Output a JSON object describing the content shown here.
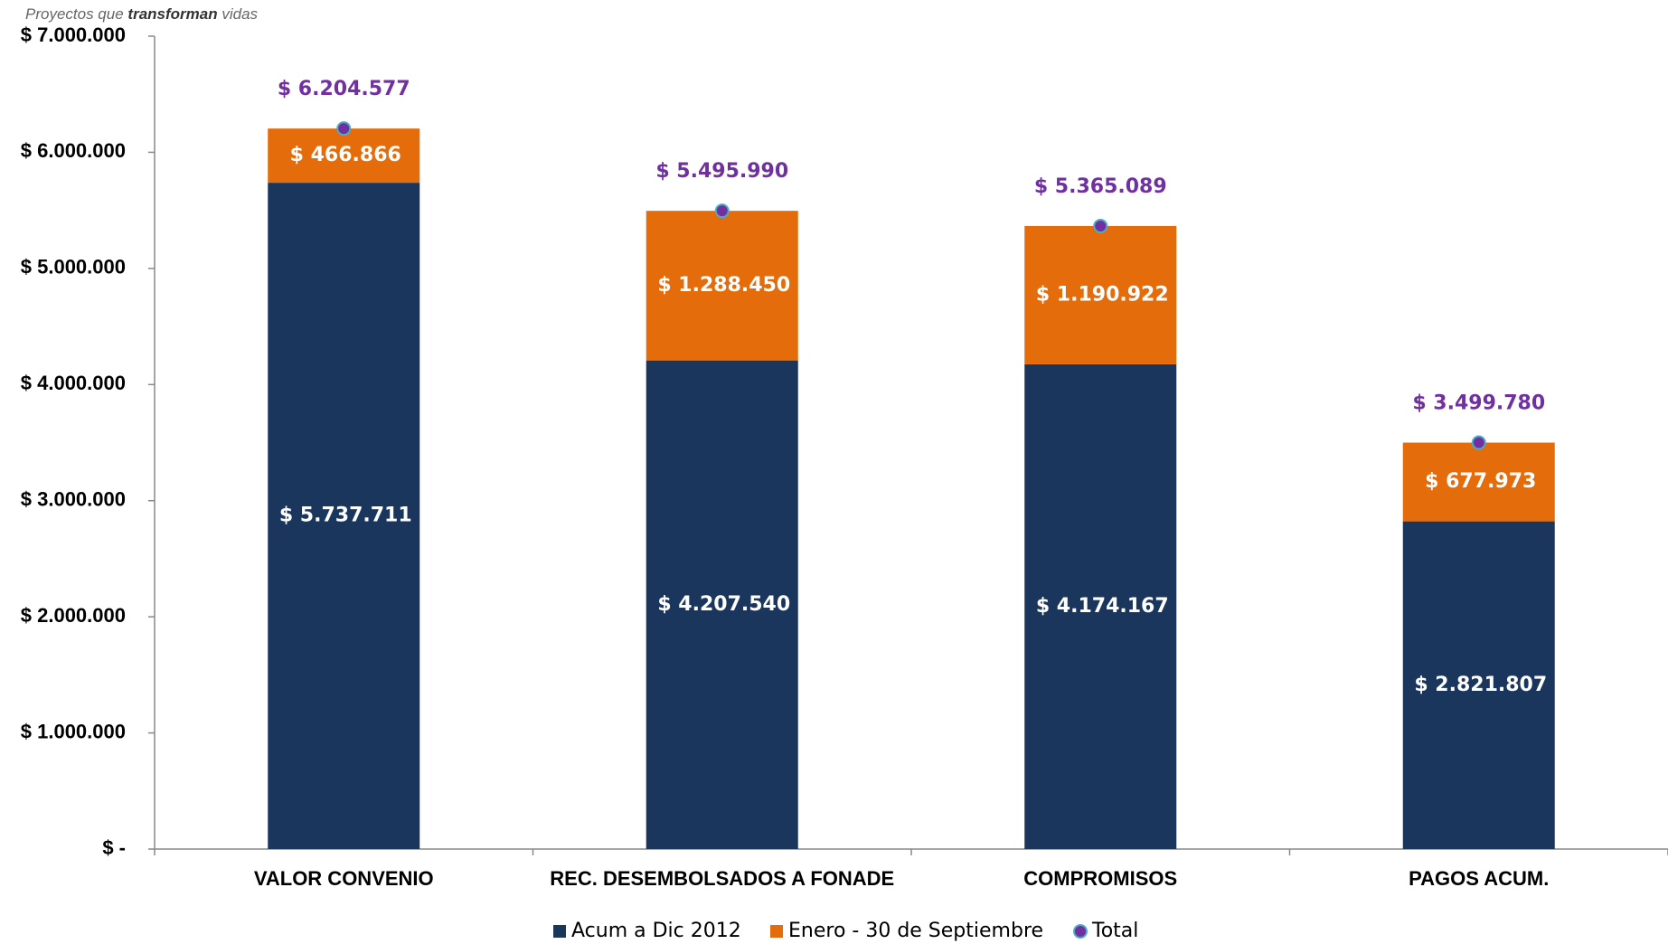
{
  "header": {
    "tagline": [
      "Proyectos que",
      "transforman",
      "vidas"
    ]
  },
  "chart_data": {
    "type": "bar",
    "stacked": true,
    "categories": [
      "VALOR CONVENIO",
      "REC. DESEMBOLSADOS A FONADE",
      "COMPROMISOS",
      "PAGOS ACUM."
    ],
    "series": [
      {
        "name": "Acum a Dic 2012",
        "color": "#1b365d",
        "values": [
          5737711,
          4207540,
          4174167,
          2821807
        ],
        "value_labels": [
          "$ 5.737.711",
          "$ 4.207.540",
          "$ 4.174.167",
          "$ 2.821.807"
        ]
      },
      {
        "name": "Enero - 30 de Septiembre",
        "color": "#e46c0a",
        "values": [
          466866,
          1288450,
          1190922,
          677973
        ],
        "value_labels": [
          "$ 466.866",
          "$ 1.288.450",
          "$ 1.190.922",
          "$ 677.973"
        ]
      },
      {
        "name": "Total",
        "type": "marker",
        "color": "#7030a0",
        "values": [
          6204577,
          5495990,
          5365089,
          3499780
        ],
        "value_labels": [
          "$ 6.204.577",
          "$ 5.495.990",
          "$ 5.365.089",
          "$ 3.499.780"
        ]
      }
    ],
    "ylim": [
      0,
      7000000
    ],
    "yticks": [
      {
        "value": 0,
        "label": "$ -"
      },
      {
        "value": 1000000,
        "label": "$ 1.000.000"
      },
      {
        "value": 2000000,
        "label": "$ 2.000.000"
      },
      {
        "value": 3000000,
        "label": "$ 3.000.000"
      },
      {
        "value": 4000000,
        "label": "$ 4.000.000"
      },
      {
        "value": 5000000,
        "label": "$ 5.000.000"
      },
      {
        "value": 6000000,
        "label": "$ 6.000.000"
      },
      {
        "value": 7000000,
        "label": "$ 7.000.000"
      }
    ],
    "legend": "bottom"
  }
}
